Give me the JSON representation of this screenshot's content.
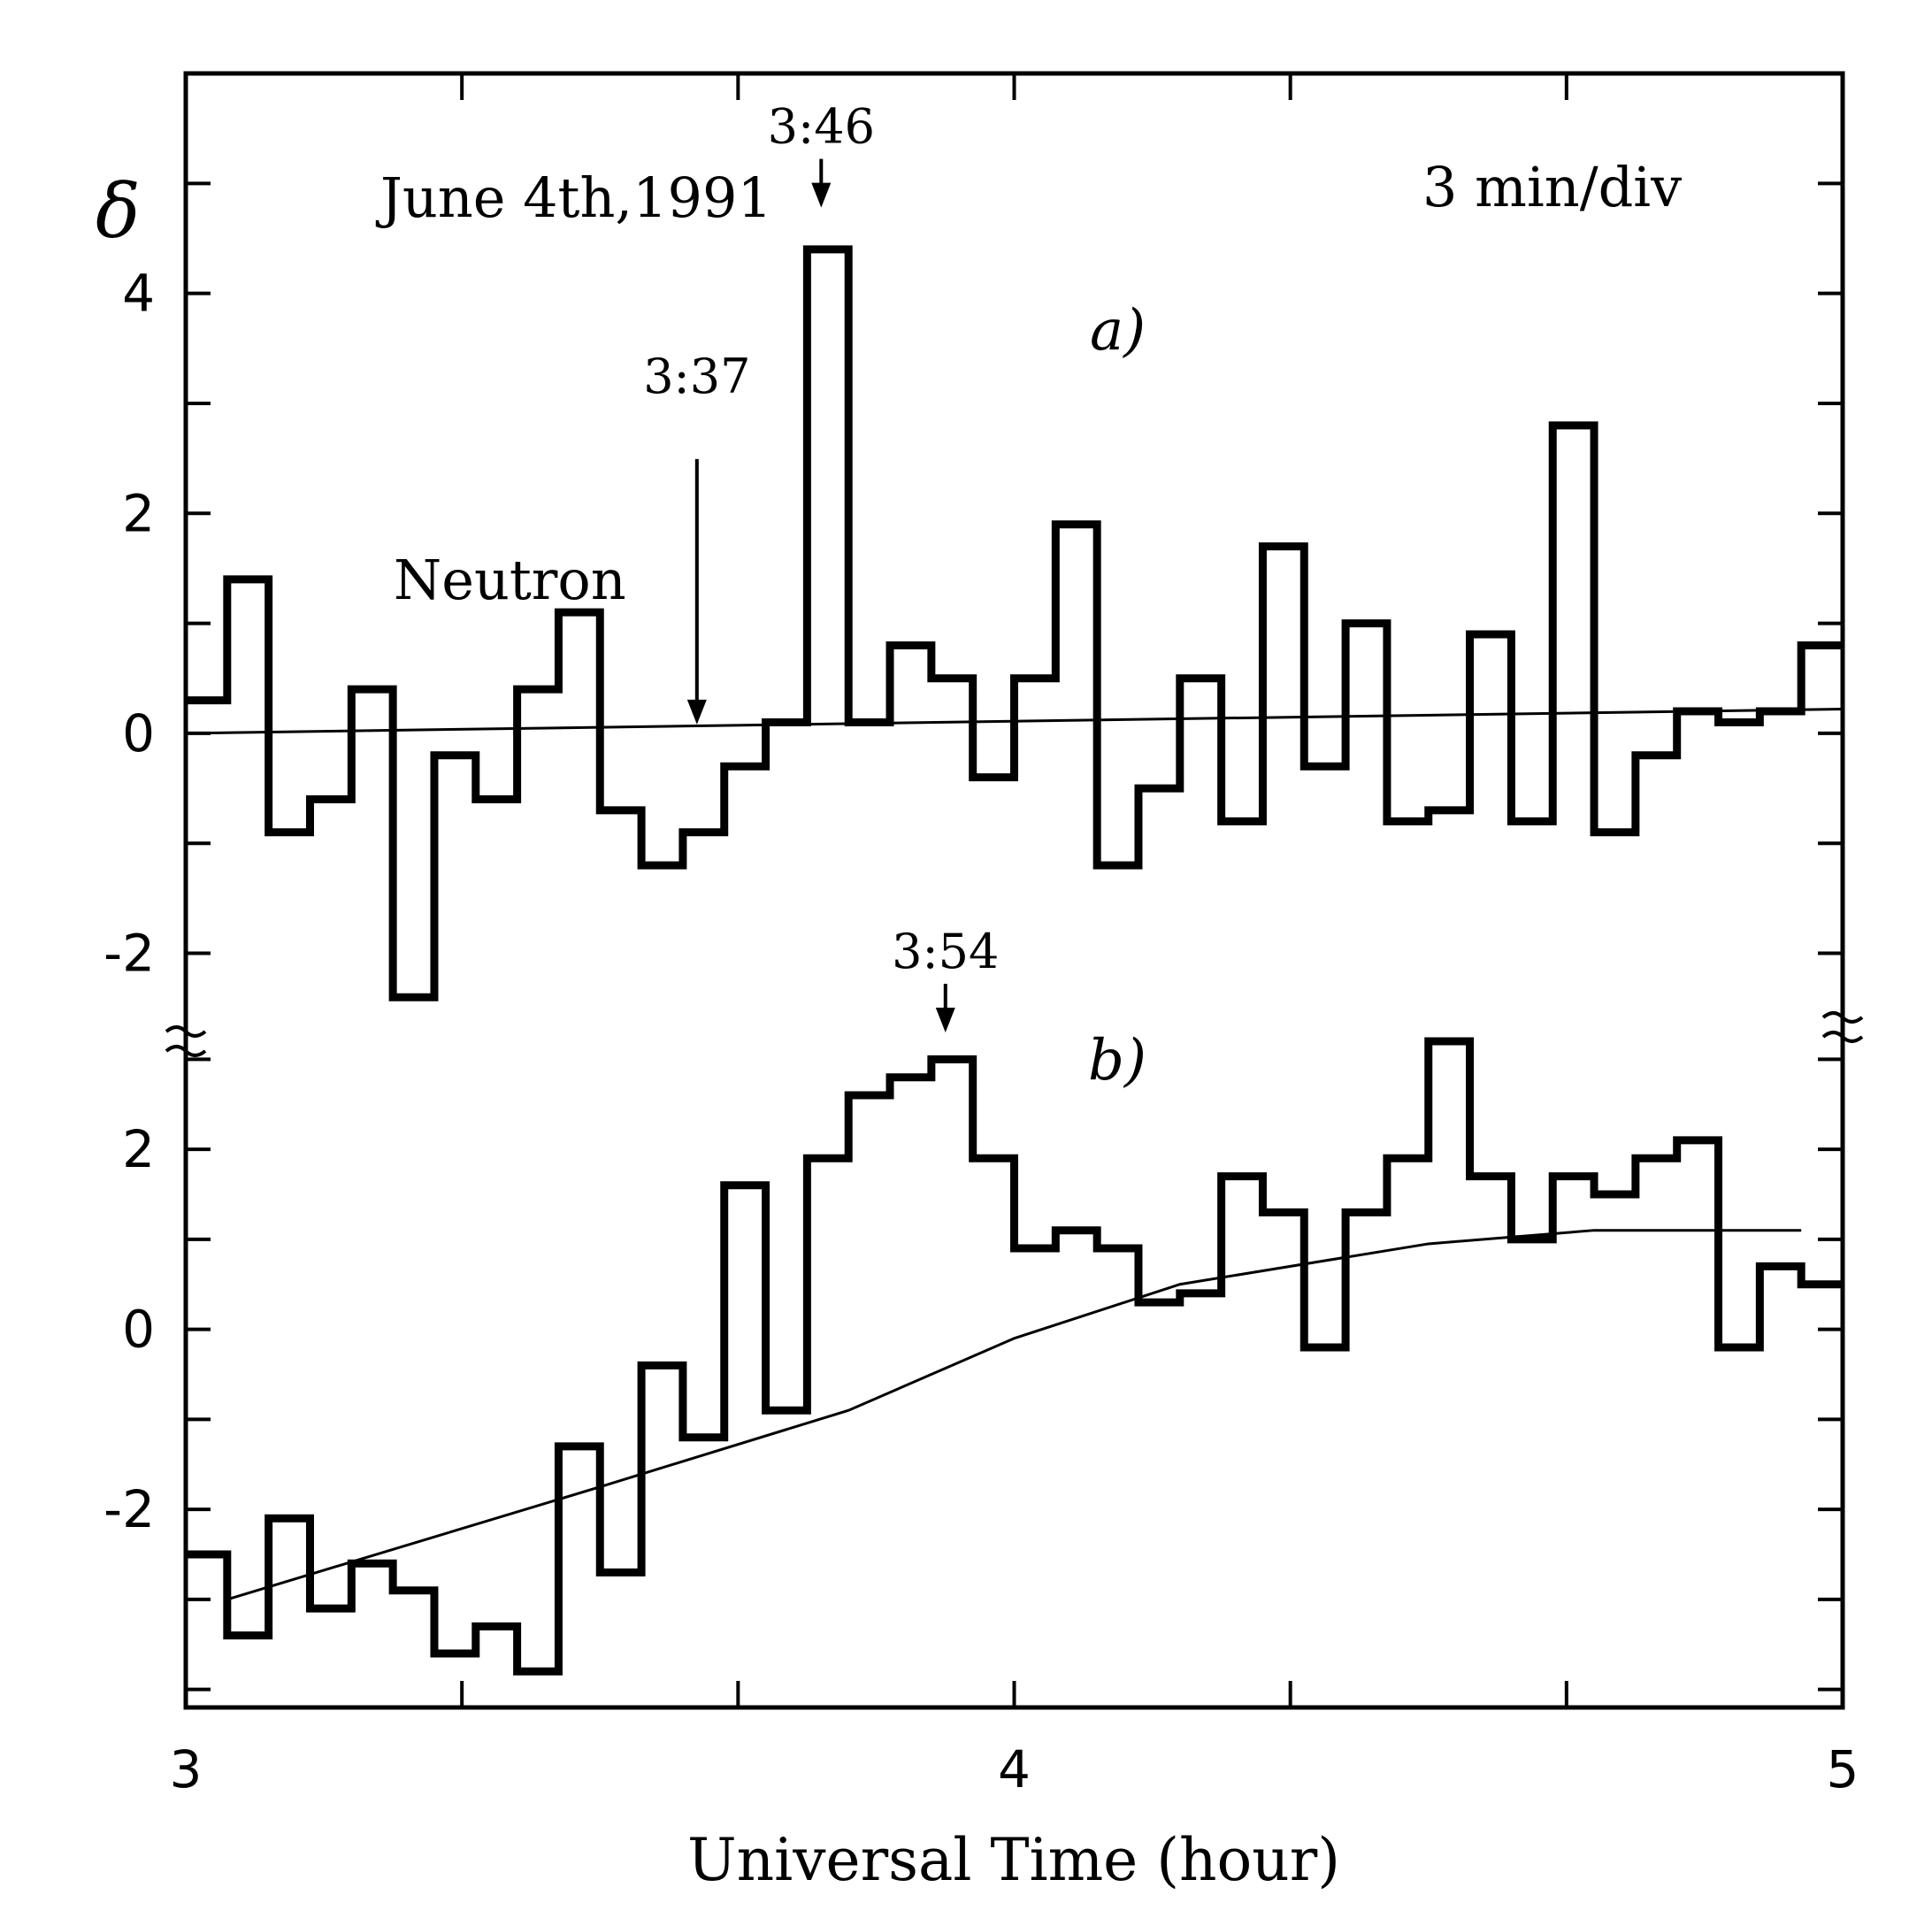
{
  "chart_data": {
    "type": "line",
    "date_text": "June  4th,1991",
    "scale_text": "3  min/div",
    "ylabel": "δ",
    "xlabel": "Universal Time (hour)",
    "x_ticks": [
      {
        "value": 3,
        "label": "3"
      },
      {
        "value": 4,
        "label": "4"
      },
      {
        "value": 5,
        "label": "5"
      }
    ],
    "xlim": [
      3,
      5
    ],
    "bin_minutes": 3,
    "panels": [
      {
        "label": "a)",
        "series_label": "Neutron",
        "ylim": [
          -2.8,
          6.0
        ],
        "y_ticks": [
          {
            "value": 4,
            "label": "4"
          },
          {
            "value": 2,
            "label": "2"
          },
          {
            "value": 0,
            "label": "0"
          },
          {
            "value": -2,
            "label": "-2"
          }
        ],
        "steps": [
          0.3,
          1.4,
          -0.9,
          -0.6,
          0.4,
          -2.4,
          -0.2,
          -0.6,
          0.4,
          1.1,
          -0.7,
          -1.2,
          -0.9,
          -0.3,
          0.1,
          4.4,
          0.1,
          0.8,
          0.5,
          -0.4,
          0.5,
          1.9,
          -1.2,
          -0.5,
          0.5,
          -0.8,
          1.7,
          -0.3,
          1.0,
          -0.8,
          -0.7,
          0.9,
          -0.8,
          2.8,
          -0.9,
          -0.2,
          0.2,
          0.1,
          0.2,
          0.8
        ],
        "trend": [
          [
            3.0,
            0.0
          ],
          [
            5.0,
            0.22
          ]
        ],
        "annotations": [
          {
            "text": "3:37",
            "x": 3.617,
            "y_tip": 0.0
          },
          {
            "text": "3:46",
            "x": 3.767,
            "y_tip": 4.7
          }
        ]
      },
      {
        "label": "b)",
        "ylim": [
          -4.2,
          3.2
        ],
        "y_ticks": [
          {
            "value": 2,
            "label": "2"
          },
          {
            "value": 0,
            "label": "0"
          },
          {
            "value": -2,
            "label": "-2"
          }
        ],
        "steps": [
          -2.5,
          -3.4,
          -2.1,
          -3.1,
          -2.6,
          -2.9,
          -3.6,
          -3.3,
          -3.8,
          -1.3,
          -2.7,
          -0.4,
          -1.2,
          1.6,
          -0.9,
          1.9,
          2.6,
          2.8,
          3.0,
          1.9,
          0.9,
          1.1,
          0.9,
          0.3,
          0.4,
          1.7,
          1.3,
          -0.2,
          1.3,
          1.9,
          3.2,
          1.7,
          1.0,
          1.7,
          1.5,
          1.9,
          2.1,
          -0.2,
          0.7,
          0.5
        ],
        "trend": [
          [
            3.05,
            -3.0
          ],
          [
            3.5,
            -1.75
          ],
          [
            3.8,
            -0.9
          ],
          [
            4.0,
            -0.1
          ],
          [
            4.2,
            0.5
          ],
          [
            4.5,
            0.95
          ],
          [
            4.7,
            1.1
          ],
          [
            4.95,
            1.1
          ]
        ],
        "annotations": [
          {
            "text": "3:54",
            "x": 3.917,
            "y_tip": 3.2
          }
        ]
      }
    ]
  }
}
